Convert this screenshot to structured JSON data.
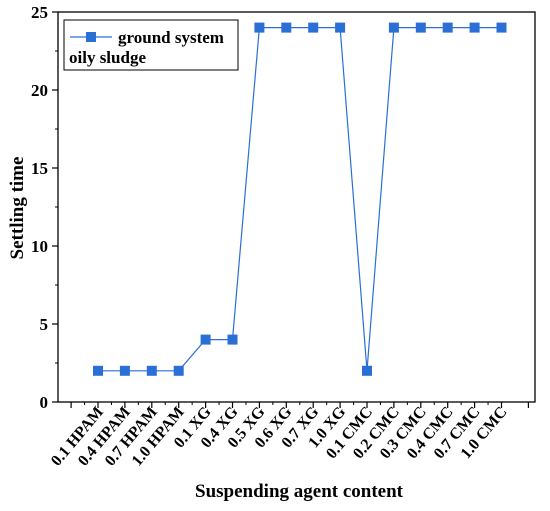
{
  "chart_data": {
    "type": "line",
    "title": "",
    "xlabel": "Suspending agent content",
    "ylabel": "Settling time",
    "ylim": [
      0,
      25
    ],
    "yticks": [
      0,
      5,
      10,
      15,
      20,
      25
    ],
    "grid": false,
    "legend_position": "top-left",
    "legend_lines": [
      "ground system",
      "oily sludge"
    ],
    "categories": [
      "0.1 HPAM",
      "0.4 HPAM",
      "0.7 HPAM",
      "1.0 HPAM",
      "0.1 XG",
      "0.4 XG",
      "0.5 XG",
      "0.6 XG",
      "0.7 XG",
      "1.0 XG",
      "0.1 CMC",
      "0.2 CMC",
      "0.3 CMC",
      "0.4 CMC",
      "0.7 CMC",
      "1.0 CMC"
    ],
    "series": [
      {
        "name": "ground system oily sludge",
        "color": "#2a6fd6",
        "marker": "square",
        "values": [
          2,
          2,
          2,
          2,
          4,
          4,
          24,
          24,
          24,
          24,
          2,
          24,
          24,
          24,
          24,
          24
        ]
      }
    ]
  }
}
